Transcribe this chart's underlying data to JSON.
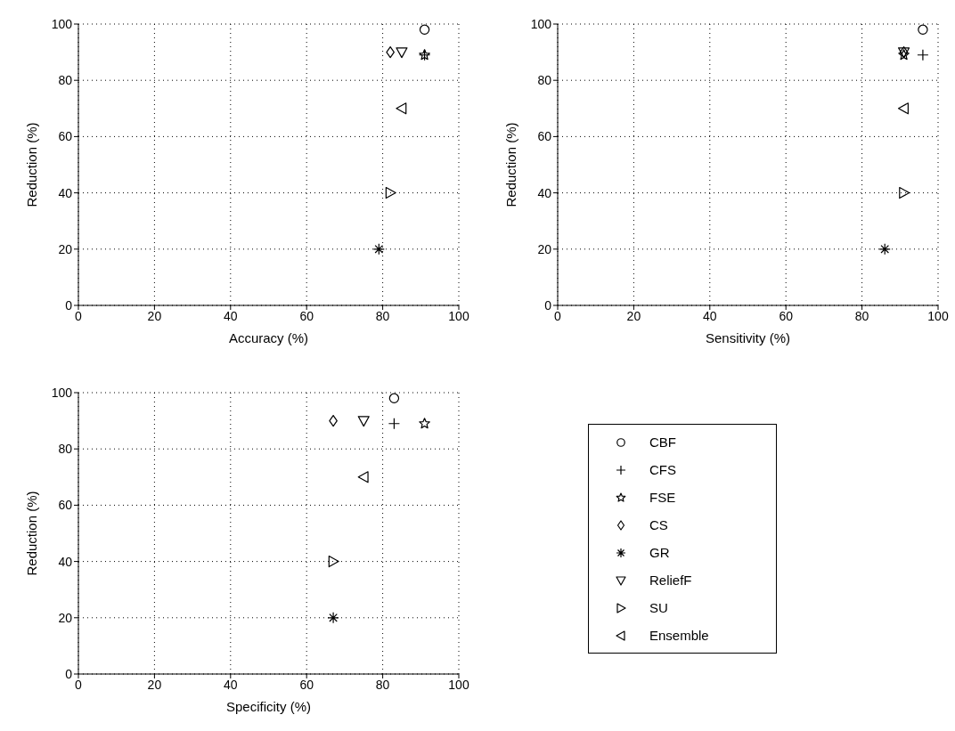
{
  "chart_data": [
    {
      "type": "scatter",
      "xlabel": "Accuracy (%)",
      "ylabel": "Reduction (%)",
      "xlim": [
        0,
        100
      ],
      "ylim": [
        0,
        100
      ],
      "xticks": [
        0,
        20,
        40,
        60,
        80,
        100
      ],
      "yticks": [
        0,
        20,
        40,
        60,
        80,
        100
      ],
      "grid": true,
      "legend": false,
      "series": [
        {
          "color": "#000000",
          "marker": "circle",
          "x": [
            91
          ],
          "values": [
            98
          ]
        },
        {
          "color": "#000000",
          "marker": "plus",
          "x": [
            91
          ],
          "values": [
            89
          ]
        },
        {
          "color": "#000000",
          "marker": "star",
          "x": [
            91
          ],
          "values": [
            89
          ]
        },
        {
          "color": "#000000",
          "marker": "diamond",
          "x": [
            82
          ],
          "values": [
            90
          ]
        },
        {
          "color": "#000000",
          "marker": "cross",
          "x": [
            79
          ],
          "values": [
            20
          ]
        },
        {
          "color": "#000000",
          "marker": "triangle-down",
          "x": [
            85
          ],
          "values": [
            90
          ]
        },
        {
          "color": "#000000",
          "marker": "triangle-right",
          "x": [
            82
          ],
          "values": [
            40
          ]
        },
        {
          "color": "#000000",
          "marker": "triangle-left",
          "x": [
            85
          ],
          "values": [
            70
          ]
        }
      ]
    },
    {
      "type": "scatter",
      "xlabel": "Sensitivity (%)",
      "ylabel": "Reduction (%)",
      "xlim": [
        0,
        100
      ],
      "ylim": [
        0,
        100
      ],
      "xticks": [
        0,
        20,
        40,
        60,
        80,
        100
      ],
      "yticks": [
        0,
        20,
        40,
        60,
        80,
        100
      ],
      "grid": true,
      "legend": false,
      "series": [
        {
          "color": "#000000",
          "marker": "circle",
          "x": [
            96
          ],
          "values": [
            98
          ]
        },
        {
          "color": "#000000",
          "marker": "plus",
          "x": [
            96
          ],
          "values": [
            89
          ]
        },
        {
          "color": "#000000",
          "marker": "star",
          "x": [
            91
          ],
          "values": [
            89
          ]
        },
        {
          "color": "#000000",
          "marker": "diamond",
          "x": [
            91
          ],
          "values": [
            90
          ]
        },
        {
          "color": "#000000",
          "marker": "cross",
          "x": [
            86
          ],
          "values": [
            20
          ]
        },
        {
          "color": "#000000",
          "marker": "triangle-down",
          "x": [
            91
          ],
          "values": [
            90
          ]
        },
        {
          "color": "#000000",
          "marker": "triangle-right",
          "x": [
            91
          ],
          "values": [
            40
          ]
        },
        {
          "color": "#000000",
          "marker": "triangle-left",
          "x": [
            91
          ],
          "values": [
            70
          ]
        }
      ]
    },
    {
      "type": "scatter",
      "xlabel": "Specificity (%)",
      "ylabel": "Reduction (%)",
      "xlim": [
        0,
        100
      ],
      "ylim": [
        0,
        100
      ],
      "xticks": [
        0,
        20,
        40,
        60,
        80,
        100
      ],
      "yticks": [
        0,
        20,
        40,
        60,
        80,
        100
      ],
      "grid": true,
      "legend": "right",
      "series": [
        {
          "name": "CBF",
          "color": "#000000",
          "marker": "circle",
          "x": [
            83
          ],
          "values": [
            98
          ]
        },
        {
          "name": "CFS",
          "color": "#000000",
          "marker": "plus",
          "x": [
            83
          ],
          "values": [
            89
          ]
        },
        {
          "name": "FSE",
          "color": "#000000",
          "marker": "star",
          "x": [
            91
          ],
          "values": [
            89
          ]
        },
        {
          "name": "CS",
          "color": "#000000",
          "marker": "diamond",
          "x": [
            67
          ],
          "values": [
            90
          ]
        },
        {
          "name": "GR",
          "color": "#000000",
          "marker": "cross",
          "x": [
            67
          ],
          "values": [
            20
          ]
        },
        {
          "name": "ReliefF",
          "color": "#000000",
          "marker": "triangle-down",
          "x": [
            75
          ],
          "values": [
            90
          ]
        },
        {
          "name": "SU",
          "color": "#000000",
          "marker": "triangle-right",
          "x": [
            67
          ],
          "values": [
            40
          ]
        },
        {
          "name": "Ensemble",
          "color": "#000000",
          "marker": "triangle-left",
          "x": [
            75
          ],
          "values": [
            70
          ]
        }
      ]
    }
  ]
}
